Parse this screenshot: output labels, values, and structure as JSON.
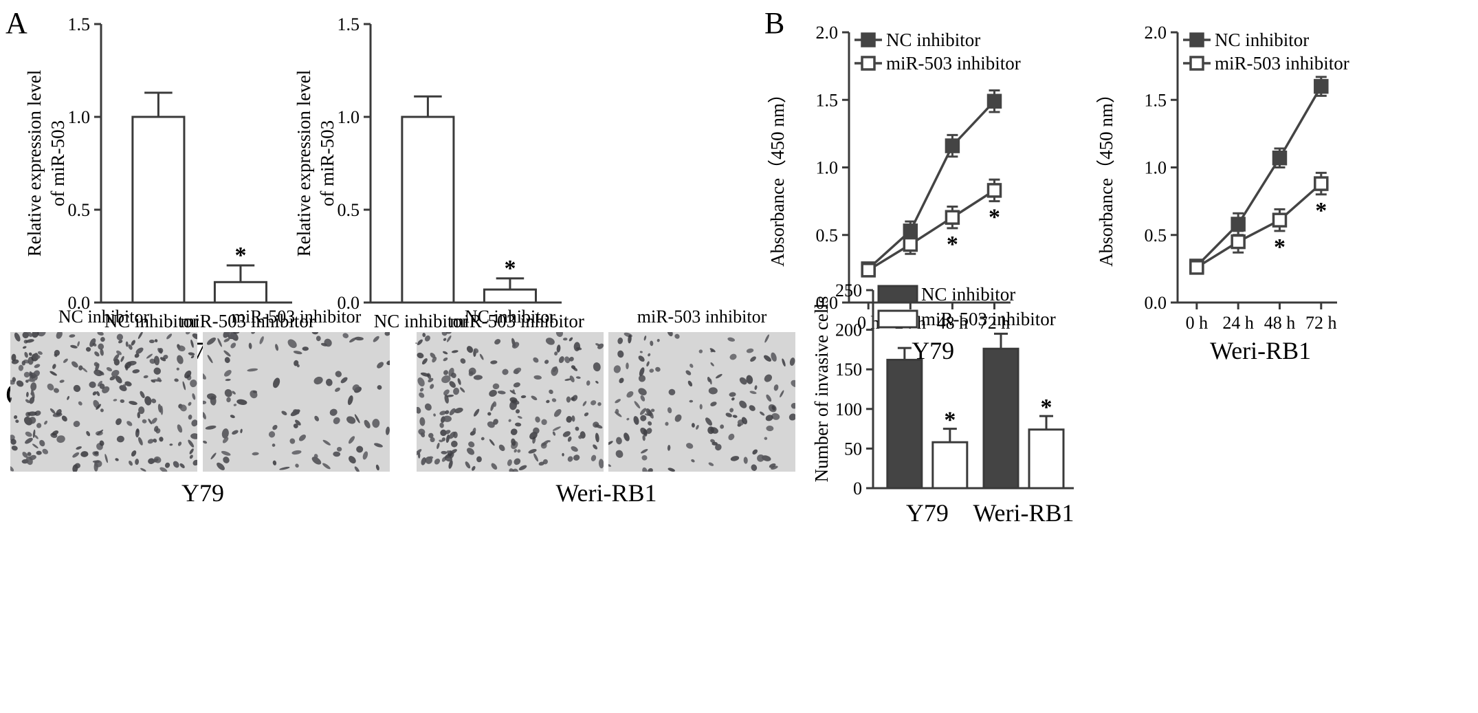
{
  "panels": {
    "A": "A",
    "B": "B",
    "C": "C"
  },
  "colors": {
    "axis": "#3a3a3a",
    "nc": "#444444",
    "mir": "#ffffff",
    "micrograph_bg": "#d6d6d6",
    "cells": "#4a4a4a"
  },
  "micrographs": {
    "captions": [
      "NC inhibitor",
      "miR-503 inhibitor",
      "NC inhibitor",
      "miR-503 inhibitor"
    ],
    "groups": [
      "Y79",
      "Weri-RB1"
    ]
  },
  "chart_data": [
    {
      "type": "bar",
      "panel": "A",
      "categories": [
        "NC inhibitor",
        "miR-503 inhibitor"
      ],
      "values": [
        1.0,
        0.11
      ],
      "errors": [
        0.13,
        0.09
      ],
      "significance": [
        "",
        "*"
      ],
      "xlabel": "Y79",
      "ylabel": "Relative expression level of miR-503",
      "ylim": [
        0,
        1.5
      ],
      "yticks": [
        "0.0",
        "0.5",
        "1.0",
        "1.5"
      ]
    },
    {
      "type": "bar",
      "panel": "A",
      "categories": [
        "NC inhibitor",
        "miR-503 inhibitor"
      ],
      "values": [
        1.0,
        0.07
      ],
      "errors": [
        0.11,
        0.06
      ],
      "significance": [
        "",
        "*"
      ],
      "xlabel": "Weri-RB1",
      "ylabel": "Relative expression level of miR-503",
      "ylim": [
        0,
        1.5
      ],
      "yticks": [
        "0.0",
        "0.5",
        "1.0",
        "1.5"
      ]
    },
    {
      "type": "line",
      "panel": "B",
      "x": [
        "0 h",
        "24 h",
        "48 h",
        "72 h"
      ],
      "series": [
        {
          "name": "NC inhibitor",
          "values": [
            0.25,
            0.53,
            1.16,
            1.49
          ],
          "errors": [
            0.04,
            0.07,
            0.08,
            0.08
          ]
        },
        {
          "name": "miR-503 inhibitor",
          "values": [
            0.24,
            0.43,
            0.63,
            0.83
          ],
          "errors": [
            0.04,
            0.07,
            0.08,
            0.08
          ]
        }
      ],
      "significance": [
        "",
        "",
        "*",
        "*"
      ],
      "xlabel": "Y79",
      "ylabel": "Absorbance（450 nm）",
      "ylim": [
        0,
        2.0
      ],
      "yticks": [
        "0.0",
        "0.5",
        "1.0",
        "1.5",
        "2.0"
      ],
      "legend": "top-left"
    },
    {
      "type": "line",
      "panel": "B",
      "x": [
        "0 h",
        "24 h",
        "48 h",
        "72 h"
      ],
      "series": [
        {
          "name": "NC inhibitor",
          "values": [
            0.27,
            0.58,
            1.07,
            1.6
          ],
          "errors": [
            0.04,
            0.08,
            0.07,
            0.07
          ]
        },
        {
          "name": "miR-503 inhibitor",
          "values": [
            0.26,
            0.45,
            0.61,
            0.88
          ],
          "errors": [
            0.04,
            0.08,
            0.08,
            0.08
          ]
        }
      ],
      "significance": [
        "",
        "",
        "*",
        "*"
      ],
      "xlabel": "Weri-RB1",
      "ylabel": "Absorbance（450 nm）",
      "ylim": [
        0,
        2.0
      ],
      "yticks": [
        "0.0",
        "0.5",
        "1.0",
        "1.5",
        "2.0"
      ],
      "legend": "top-left"
    },
    {
      "type": "bar",
      "panel": "C",
      "categories": [
        "Y79",
        "Weri-RB1"
      ],
      "series": [
        {
          "name": "NC inhibitor",
          "values": [
            162,
            176
          ],
          "errors": [
            15,
            19
          ]
        },
        {
          "name": "miR-503 inhibitor",
          "values": [
            58,
            74
          ],
          "errors": [
            17,
            17
          ]
        }
      ],
      "significance": [
        "*",
        "*"
      ],
      "ylabel": "Number of invasive cells",
      "ylim": [
        0,
        250
      ],
      "yticks": [
        "0",
        "50",
        "100",
        "150",
        "200",
        "250"
      ],
      "legend": "top-left"
    }
  ]
}
